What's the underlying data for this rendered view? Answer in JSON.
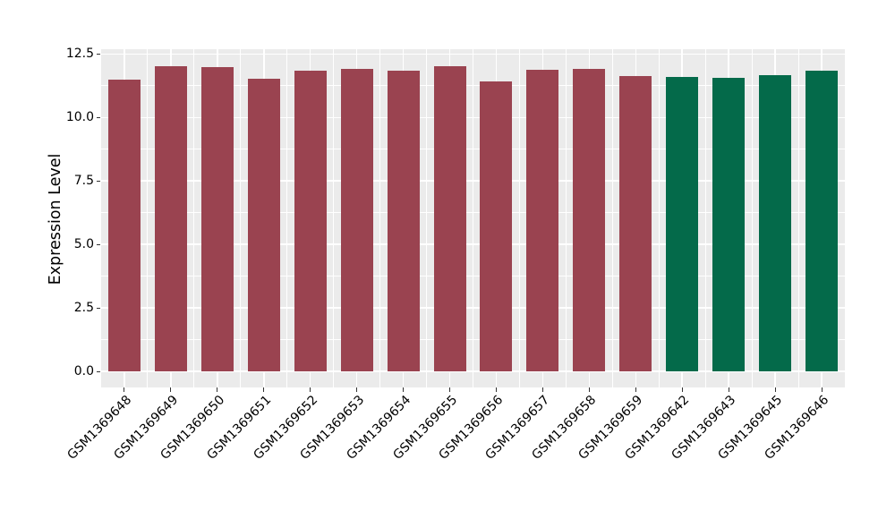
{
  "figure": {
    "background": "#FFFFFF",
    "plot_background": "#EBEBEB",
    "grid_color": "#FFFFFF",
    "tick_color": "#333333",
    "text_color": "#000000"
  },
  "chart_data": {
    "type": "bar",
    "title": "",
    "xlabel": "",
    "ylabel": "Expression Level",
    "categories": [
      "GSM1369648",
      "GSM1369649",
      "GSM1369650",
      "GSM1369651",
      "GSM1369652",
      "GSM1369653",
      "GSM1369654",
      "GSM1369655",
      "GSM1369656",
      "GSM1369657",
      "GSM1369658",
      "GSM1369659",
      "GSM1369642",
      "GSM1369643",
      "GSM1369645",
      "GSM1369646"
    ],
    "values": [
      11.5,
      12.02,
      12.0,
      11.54,
      11.84,
      11.9,
      11.83,
      12.02,
      11.43,
      11.88,
      11.91,
      11.64,
      11.61,
      11.57,
      11.67,
      11.85
    ],
    "bar_colors": [
      "#9A4350",
      "#9A4350",
      "#9A4350",
      "#9A4350",
      "#9A4350",
      "#9A4350",
      "#9A4350",
      "#9A4350",
      "#9A4350",
      "#9A4350",
      "#9A4350",
      "#9A4350",
      "#046A4A",
      "#046A4A",
      "#046A4A",
      "#046A4A"
    ],
    "color_palette": {
      "maroon": "#9A4350",
      "green": "#046A4A"
    },
    "yticks": [
      0.0,
      2.5,
      5.0,
      7.5,
      10.0,
      12.5
    ],
    "ytick_labels": [
      "0.0",
      "2.5",
      "5.0",
      "7.5",
      "10.0",
      "12.5"
    ],
    "ylim": [
      0,
      12.7
    ],
    "grid": "major+minor",
    "legend_position": "none",
    "xtick_rotation_deg": 45
  }
}
